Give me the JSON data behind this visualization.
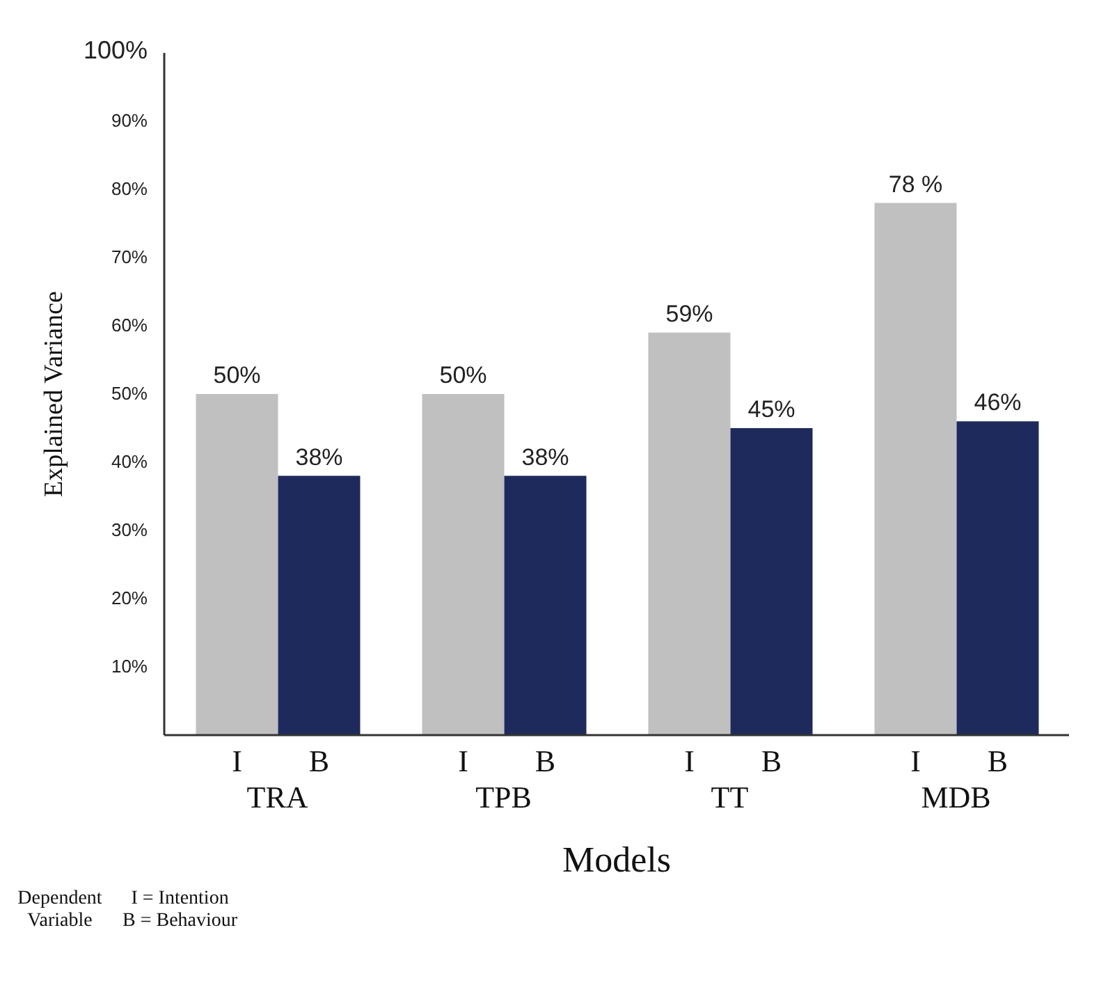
{
  "chart_data": {
    "type": "bar",
    "xlabel": "Models",
    "ylabel": "Explained Variance",
    "categories": [
      "TRA",
      "TPB",
      "TT",
      "MDB"
    ],
    "series": [
      {
        "name": "I",
        "color": "#c0c0c0",
        "values": [
          50,
          50,
          59,
          78
        ],
        "value_labels": [
          "50%",
          "50%",
          "59%",
          "78 %"
        ]
      },
      {
        "name": "B",
        "color": "#1f2a5c",
        "values": [
          38,
          38,
          45,
          46
        ],
        "value_labels": [
          "38%",
          "38%",
          "45%",
          "46%"
        ]
      }
    ],
    "ylim": [
      0,
      100
    ],
    "yticks": [
      {
        "value": 10,
        "label": "10%"
      },
      {
        "value": 20,
        "label": "20%"
      },
      {
        "value": 30,
        "label": "30%"
      },
      {
        "value": 40,
        "label": "40%"
      },
      {
        "value": 50,
        "label": "50%"
      },
      {
        "value": 60,
        "label": "60%"
      },
      {
        "value": 70,
        "label": "70%"
      },
      {
        "value": 80,
        "label": "80%"
      },
      {
        "value": 90,
        "label": "90%"
      },
      {
        "value": 100,
        "label": "100%"
      }
    ],
    "grid": false,
    "annotations": [
      "Dependent Variable",
      "I = Intention",
      "B = Behaviour"
    ]
  }
}
